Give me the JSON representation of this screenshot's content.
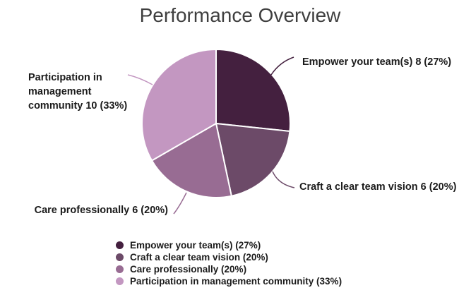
{
  "title": "Performance Overview",
  "chart_data": {
    "type": "pie",
    "title": "Performance Overview",
    "categories": [
      "Empower your team(s)",
      "Craft a clear team vision",
      "Care professionally",
      "Participation in management community"
    ],
    "values": [
      8,
      6,
      6,
      10
    ],
    "percentages": [
      27,
      20,
      20,
      33
    ],
    "colors": [
      "#44203F",
      "#6C4A68",
      "#986C93",
      "#C397C1"
    ],
    "start_angle_deg": 0,
    "direction": "clockwise",
    "legend_position": "bottom",
    "slice_border_color": "#ffffff"
  },
  "callouts": {
    "empower": "Empower your team(s) 8 (27%)",
    "craft": "Craft a clear team vision 6 (20%)",
    "care": "Care professionally 6 (20%)",
    "participation": "Participation in management community 10 (33%)"
  },
  "legend": {
    "items": [
      {
        "label": "Empower your team(s) (27%)",
        "color": "#44203F"
      },
      {
        "label": "Craft a clear team vision (20%)",
        "color": "#6C4A68"
      },
      {
        "label": "Care professionally (20%)",
        "color": "#986C93"
      },
      {
        "label": "Participation in management community (33%)",
        "color": "#C397C1"
      }
    ]
  }
}
